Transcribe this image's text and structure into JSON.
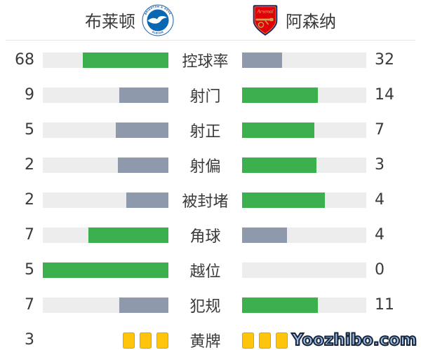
{
  "header": {
    "home": {
      "name": "布莱顿",
      "badge_icon": "brighton-crest-icon"
    },
    "away": {
      "name": "阿森纳",
      "badge_icon": "arsenal-crest-icon"
    }
  },
  "watermark": "Yoozhibo.com",
  "colors": {
    "winner_bar": "#3CB04F",
    "loser_bar": "#8E99AB",
    "bar_track": "#EDEDED",
    "yellow_card": "#FFC40C",
    "yellow_card_border": "#D9A40B",
    "text": "#3A3A3A",
    "watermark_fill": "#9FC0E4",
    "watermark_outline": "#16263E",
    "brighton_blue": "#0867B2",
    "arsenal_red": "#E00109"
  },
  "chart_data": {
    "type": "bar",
    "orientation": "horizontal",
    "categories": [
      "控球率",
      "射门",
      "射正",
      "射偏",
      "被封堵",
      "角球",
      "越位",
      "犯规",
      "黄牌"
    ],
    "series": [
      {
        "name": "布莱顿",
        "values": [
          68,
          9,
          5,
          2,
          2,
          7,
          5,
          7,
          3
        ]
      },
      {
        "name": "阿森纳",
        "values": [
          32,
          14,
          7,
          3,
          4,
          4,
          0,
          11,
          3
        ]
      }
    ],
    "legend_position": "top",
    "bar_normalization": "each row's bar fill = value / (home value + away value)",
    "notes": "Higher value of each pair is filled green, lower is slate gray; 黄牌 row shown as yellow card icons; away 黄牌 number is covered by the Yoozhibo.com watermark"
  },
  "rows": [
    {
      "type": "bar",
      "label": "控球率",
      "left": {
        "display": "68",
        "value": 68
      },
      "right": {
        "display": "32",
        "value": 32
      }
    },
    {
      "type": "bar",
      "label": "射门",
      "left": {
        "display": "9",
        "value": 9
      },
      "right": {
        "display": "14",
        "value": 14
      }
    },
    {
      "type": "bar",
      "label": "射正",
      "left": {
        "display": "5",
        "value": 5
      },
      "right": {
        "display": "7",
        "value": 7
      }
    },
    {
      "type": "bar",
      "label": "射偏",
      "left": {
        "display": "2",
        "value": 2
      },
      "right": {
        "display": "3",
        "value": 3
      }
    },
    {
      "type": "bar",
      "label": "被封堵",
      "left": {
        "display": "2",
        "value": 2
      },
      "right": {
        "display": "4",
        "value": 4
      }
    },
    {
      "type": "bar",
      "label": "角球",
      "left": {
        "display": "7",
        "value": 7
      },
      "right": {
        "display": "4",
        "value": 4
      }
    },
    {
      "type": "bar",
      "label": "越位",
      "left": {
        "display": "5",
        "value": 5
      },
      "right": {
        "display": "0",
        "value": 0
      }
    },
    {
      "type": "bar",
      "label": "犯规",
      "left": {
        "display": "7",
        "value": 7
      },
      "right": {
        "display": "11",
        "value": 11
      }
    },
    {
      "type": "cards",
      "label": "黄牌",
      "left": {
        "display": "3",
        "cards": 3
      },
      "right": {
        "display": "",
        "cards": 3
      }
    }
  ]
}
